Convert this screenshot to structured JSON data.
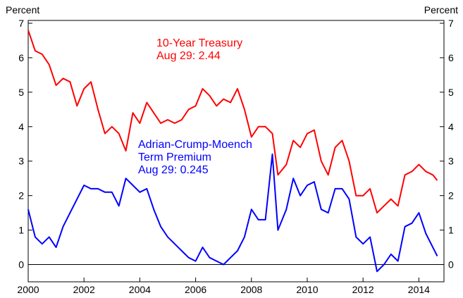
{
  "chart_data": {
    "type": "line",
    "y_label": "Percent",
    "y2_label": "Percent",
    "x": [
      2000.0,
      2000.25,
      2000.5,
      2000.75,
      2001.0,
      2001.25,
      2001.5,
      2001.75,
      2002.0,
      2002.25,
      2002.5,
      2002.75,
      2003.0,
      2003.25,
      2003.5,
      2003.75,
      2004.0,
      2004.25,
      2004.5,
      2004.75,
      2005.0,
      2005.25,
      2005.5,
      2005.75,
      2006.0,
      2006.25,
      2006.5,
      2006.75,
      2007.0,
      2007.25,
      2007.5,
      2007.75,
      2008.0,
      2008.25,
      2008.5,
      2008.75,
      2008.95,
      2009.25,
      2009.5,
      2009.75,
      2010.0,
      2010.25,
      2010.5,
      2010.75,
      2011.0,
      2011.25,
      2011.5,
      2011.75,
      2012.0,
      2012.25,
      2012.5,
      2012.75,
      2013.0,
      2013.25,
      2013.5,
      2013.75,
      2014.0,
      2014.25,
      2014.5,
      2014.66
    ],
    "series": [
      {
        "name": "10-Year Treasury",
        "color": "#ff0000",
        "values": [
          6.8,
          6.2,
          6.1,
          5.8,
          5.2,
          5.4,
          5.3,
          4.6,
          5.1,
          5.3,
          4.5,
          3.8,
          4.0,
          3.8,
          3.3,
          4.4,
          4.1,
          4.7,
          4.4,
          4.1,
          4.2,
          4.1,
          4.2,
          4.5,
          4.6,
          5.1,
          4.9,
          4.6,
          4.8,
          4.7,
          5.1,
          4.5,
          3.7,
          4.0,
          4.0,
          3.8,
          2.6,
          2.9,
          3.6,
          3.4,
          3.8,
          3.9,
          3.0,
          2.6,
          3.4,
          3.6,
          3.0,
          2.0,
          2.0,
          2.2,
          1.5,
          1.7,
          1.9,
          1.7,
          2.6,
          2.7,
          2.9,
          2.7,
          2.6,
          2.44
        ]
      },
      {
        "name": "Adrian-Crump-Moench Term Premium",
        "color": "#0000ff",
        "values": [
          1.6,
          0.8,
          0.6,
          0.8,
          0.5,
          1.1,
          1.5,
          1.9,
          2.3,
          2.2,
          2.2,
          2.1,
          2.1,
          1.7,
          2.5,
          2.3,
          2.1,
          2.2,
          1.6,
          1.1,
          0.8,
          0.6,
          0.4,
          0.2,
          0.1,
          0.5,
          0.2,
          0.1,
          0.0,
          0.2,
          0.4,
          0.8,
          1.6,
          1.3,
          1.3,
          3.2,
          1.0,
          1.6,
          2.5,
          2.0,
          2.3,
          2.4,
          1.6,
          1.5,
          2.2,
          2.2,
          1.9,
          0.8,
          0.6,
          0.8,
          -0.2,
          0.0,
          0.3,
          0.1,
          1.1,
          1.2,
          1.5,
          0.9,
          0.5,
          0.245
        ]
      }
    ],
    "annotations": [
      {
        "lines": [
          "10-Year Treasury",
          "Aug 29: 2.44"
        ],
        "color": "#ff0000"
      },
      {
        "lines": [
          "Adrian-Crump-Moench",
          "Term Premium",
          "Aug 29: 0.245"
        ],
        "color": "#0000ff"
      }
    ],
    "xlim": [
      2000,
      2014.9
    ],
    "xticks": [
      2000,
      2002,
      2004,
      2006,
      2008,
      2010,
      2012,
      2014
    ],
    "ylim": [
      -0.5,
      7
    ],
    "yticks": [
      0,
      1,
      2,
      3,
      4,
      5,
      6,
      7
    ],
    "y2lim": [
      -0.5,
      7
    ],
    "y2ticks": [
      0,
      1,
      2,
      3,
      4,
      5,
      6,
      7
    ],
    "reference_line": 0
  }
}
